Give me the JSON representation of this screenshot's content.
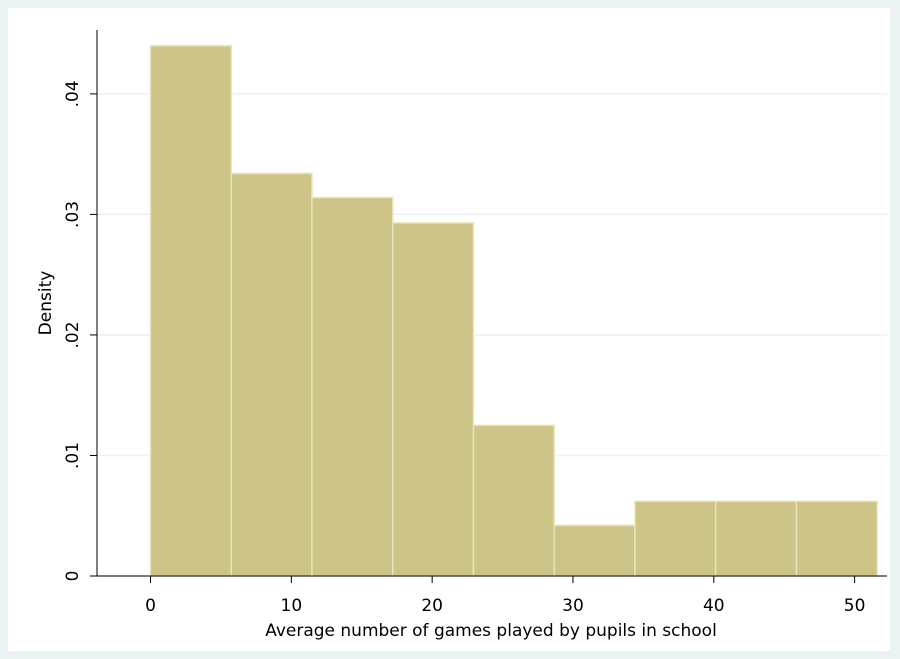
{
  "chart_data": {
    "type": "histogram",
    "xlabel": "Average number of games played by pupils in school",
    "ylabel": "Density",
    "bins": [
      0,
      5.733,
      11.467,
      17.2,
      22.933,
      28.667,
      34.4,
      40.133,
      45.867,
      51.6
    ],
    "values": [
      0.044,
      0.0334,
      0.0314,
      0.0293,
      0.0125,
      0.0042,
      0.0062,
      0.0062,
      0.0062
    ],
    "color": "#cdc587",
    "xlim": [
      -3.8,
      52.3
    ],
    "xticks": [
      0,
      10,
      20,
      30,
      40,
      50
    ],
    "ylim": [
      0,
      0.0453
    ],
    "yticks": [
      0,
      {
        "value": 0.01,
        "label": ".01"
      },
      {
        "value": 0.02,
        "label": ".02"
      },
      {
        "value": 0.03,
        "label": ".03"
      },
      {
        "value": 0.04,
        "label": ".04"
      }
    ],
    "grid": true
  }
}
